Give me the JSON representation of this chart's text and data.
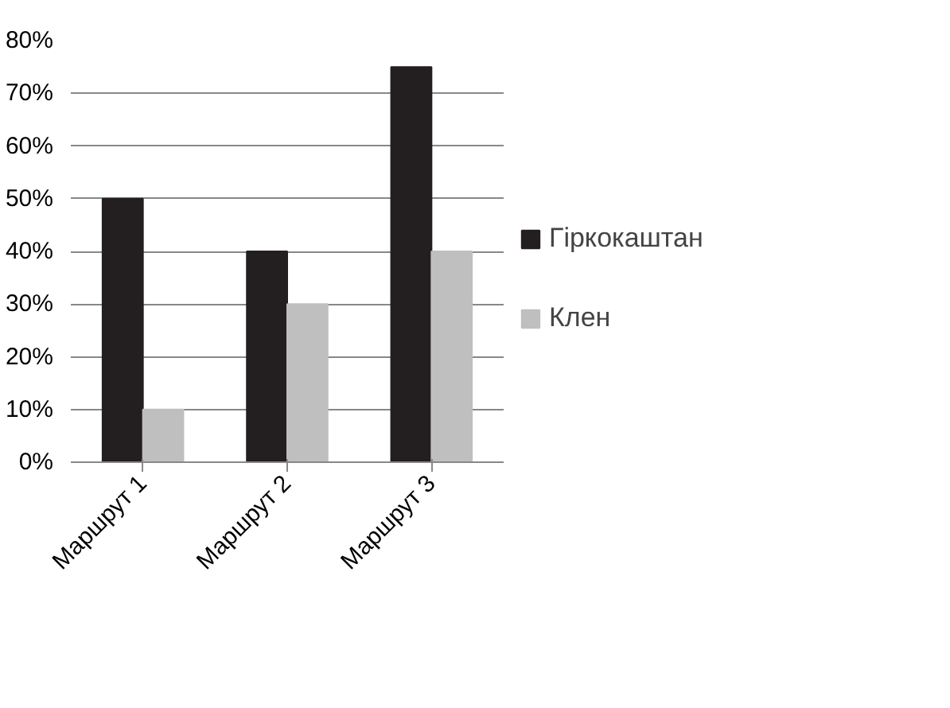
{
  "chart_data": {
    "type": "bar",
    "categories": [
      "Маршрут 1",
      "Маршрут 2",
      "Маршрут 3"
    ],
    "series": [
      {
        "name": "Гіркокаштан",
        "color": "#231f20",
        "values": [
          50,
          40,
          75
        ]
      },
      {
        "name": "Клен",
        "color": "#bfbfbf",
        "values": [
          10,
          30,
          40
        ]
      }
    ],
    "ylim": [
      0,
      80
    ],
    "yticks": [
      {
        "value": 0,
        "label": "0%"
      },
      {
        "value": 10,
        "label": "10%"
      },
      {
        "value": 20,
        "label": "20%"
      },
      {
        "value": 30,
        "label": "30%"
      },
      {
        "value": 40,
        "label": "40%"
      },
      {
        "value": 50,
        "label": "50%"
      },
      {
        "value": 60,
        "label": "60%"
      },
      {
        "value": 70,
        "label": "70%"
      },
      {
        "value": 80,
        "label": "80%"
      }
    ],
    "grid": "y",
    "legend": "right"
  }
}
